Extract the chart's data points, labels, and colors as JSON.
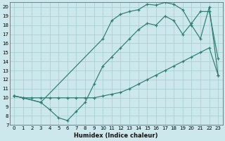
{
  "xlabel": "Humidex (Indice chaleur)",
  "bg_color": "#cce8ec",
  "grid_color": "#aed4d8",
  "line_color": "#2e7d72",
  "xlim": [
    -0.5,
    23.5
  ],
  "ylim": [
    7,
    20.5
  ],
  "xticks": [
    0,
    1,
    2,
    3,
    4,
    5,
    6,
    7,
    8,
    9,
    10,
    11,
    12,
    13,
    14,
    15,
    16,
    17,
    18,
    19,
    20,
    21,
    22,
    23
  ],
  "yticks": [
    7,
    8,
    9,
    10,
    11,
    12,
    13,
    14,
    15,
    16,
    17,
    18,
    19,
    20
  ],
  "line1_x": [
    0,
    1,
    2,
    3,
    4,
    5,
    6,
    7,
    8,
    9,
    10,
    11,
    12,
    13,
    14,
    15,
    16,
    17,
    18,
    19,
    20,
    21,
    22,
    23
  ],
  "line1_y": [
    10.2,
    10.0,
    10.0,
    10.0,
    10.0,
    10.0,
    10.0,
    10.0,
    10.0,
    10.0,
    10.2,
    10.4,
    10.6,
    11.0,
    11.5,
    12.0,
    12.5,
    13.0,
    13.5,
    14.0,
    14.5,
    15.0,
    15.5,
    12.5
  ],
  "line2_x": [
    0,
    1,
    3,
    4,
    5,
    6,
    7,
    8,
    9,
    10,
    11,
    12,
    13,
    14,
    15,
    16,
    17,
    18,
    19,
    20,
    21,
    22,
    23
  ],
  "line2_y": [
    10.2,
    10.0,
    9.5,
    8.7,
    7.8,
    7.5,
    8.5,
    9.5,
    11.5,
    13.5,
    14.5,
    15.5,
    16.5,
    17.5,
    18.2,
    18.0,
    19.0,
    18.5,
    17.0,
    18.2,
    19.5,
    19.5,
    14.3
  ],
  "line3_x": [
    0,
    1,
    3,
    10,
    11,
    12,
    13,
    14,
    15,
    16,
    17,
    18,
    19,
    20,
    21,
    22,
    23
  ],
  "line3_y": [
    10.2,
    10.0,
    9.5,
    16.5,
    18.5,
    19.2,
    19.5,
    19.7,
    20.3,
    20.2,
    20.5,
    20.3,
    19.7,
    18.0,
    16.5,
    20.0,
    12.5
  ]
}
